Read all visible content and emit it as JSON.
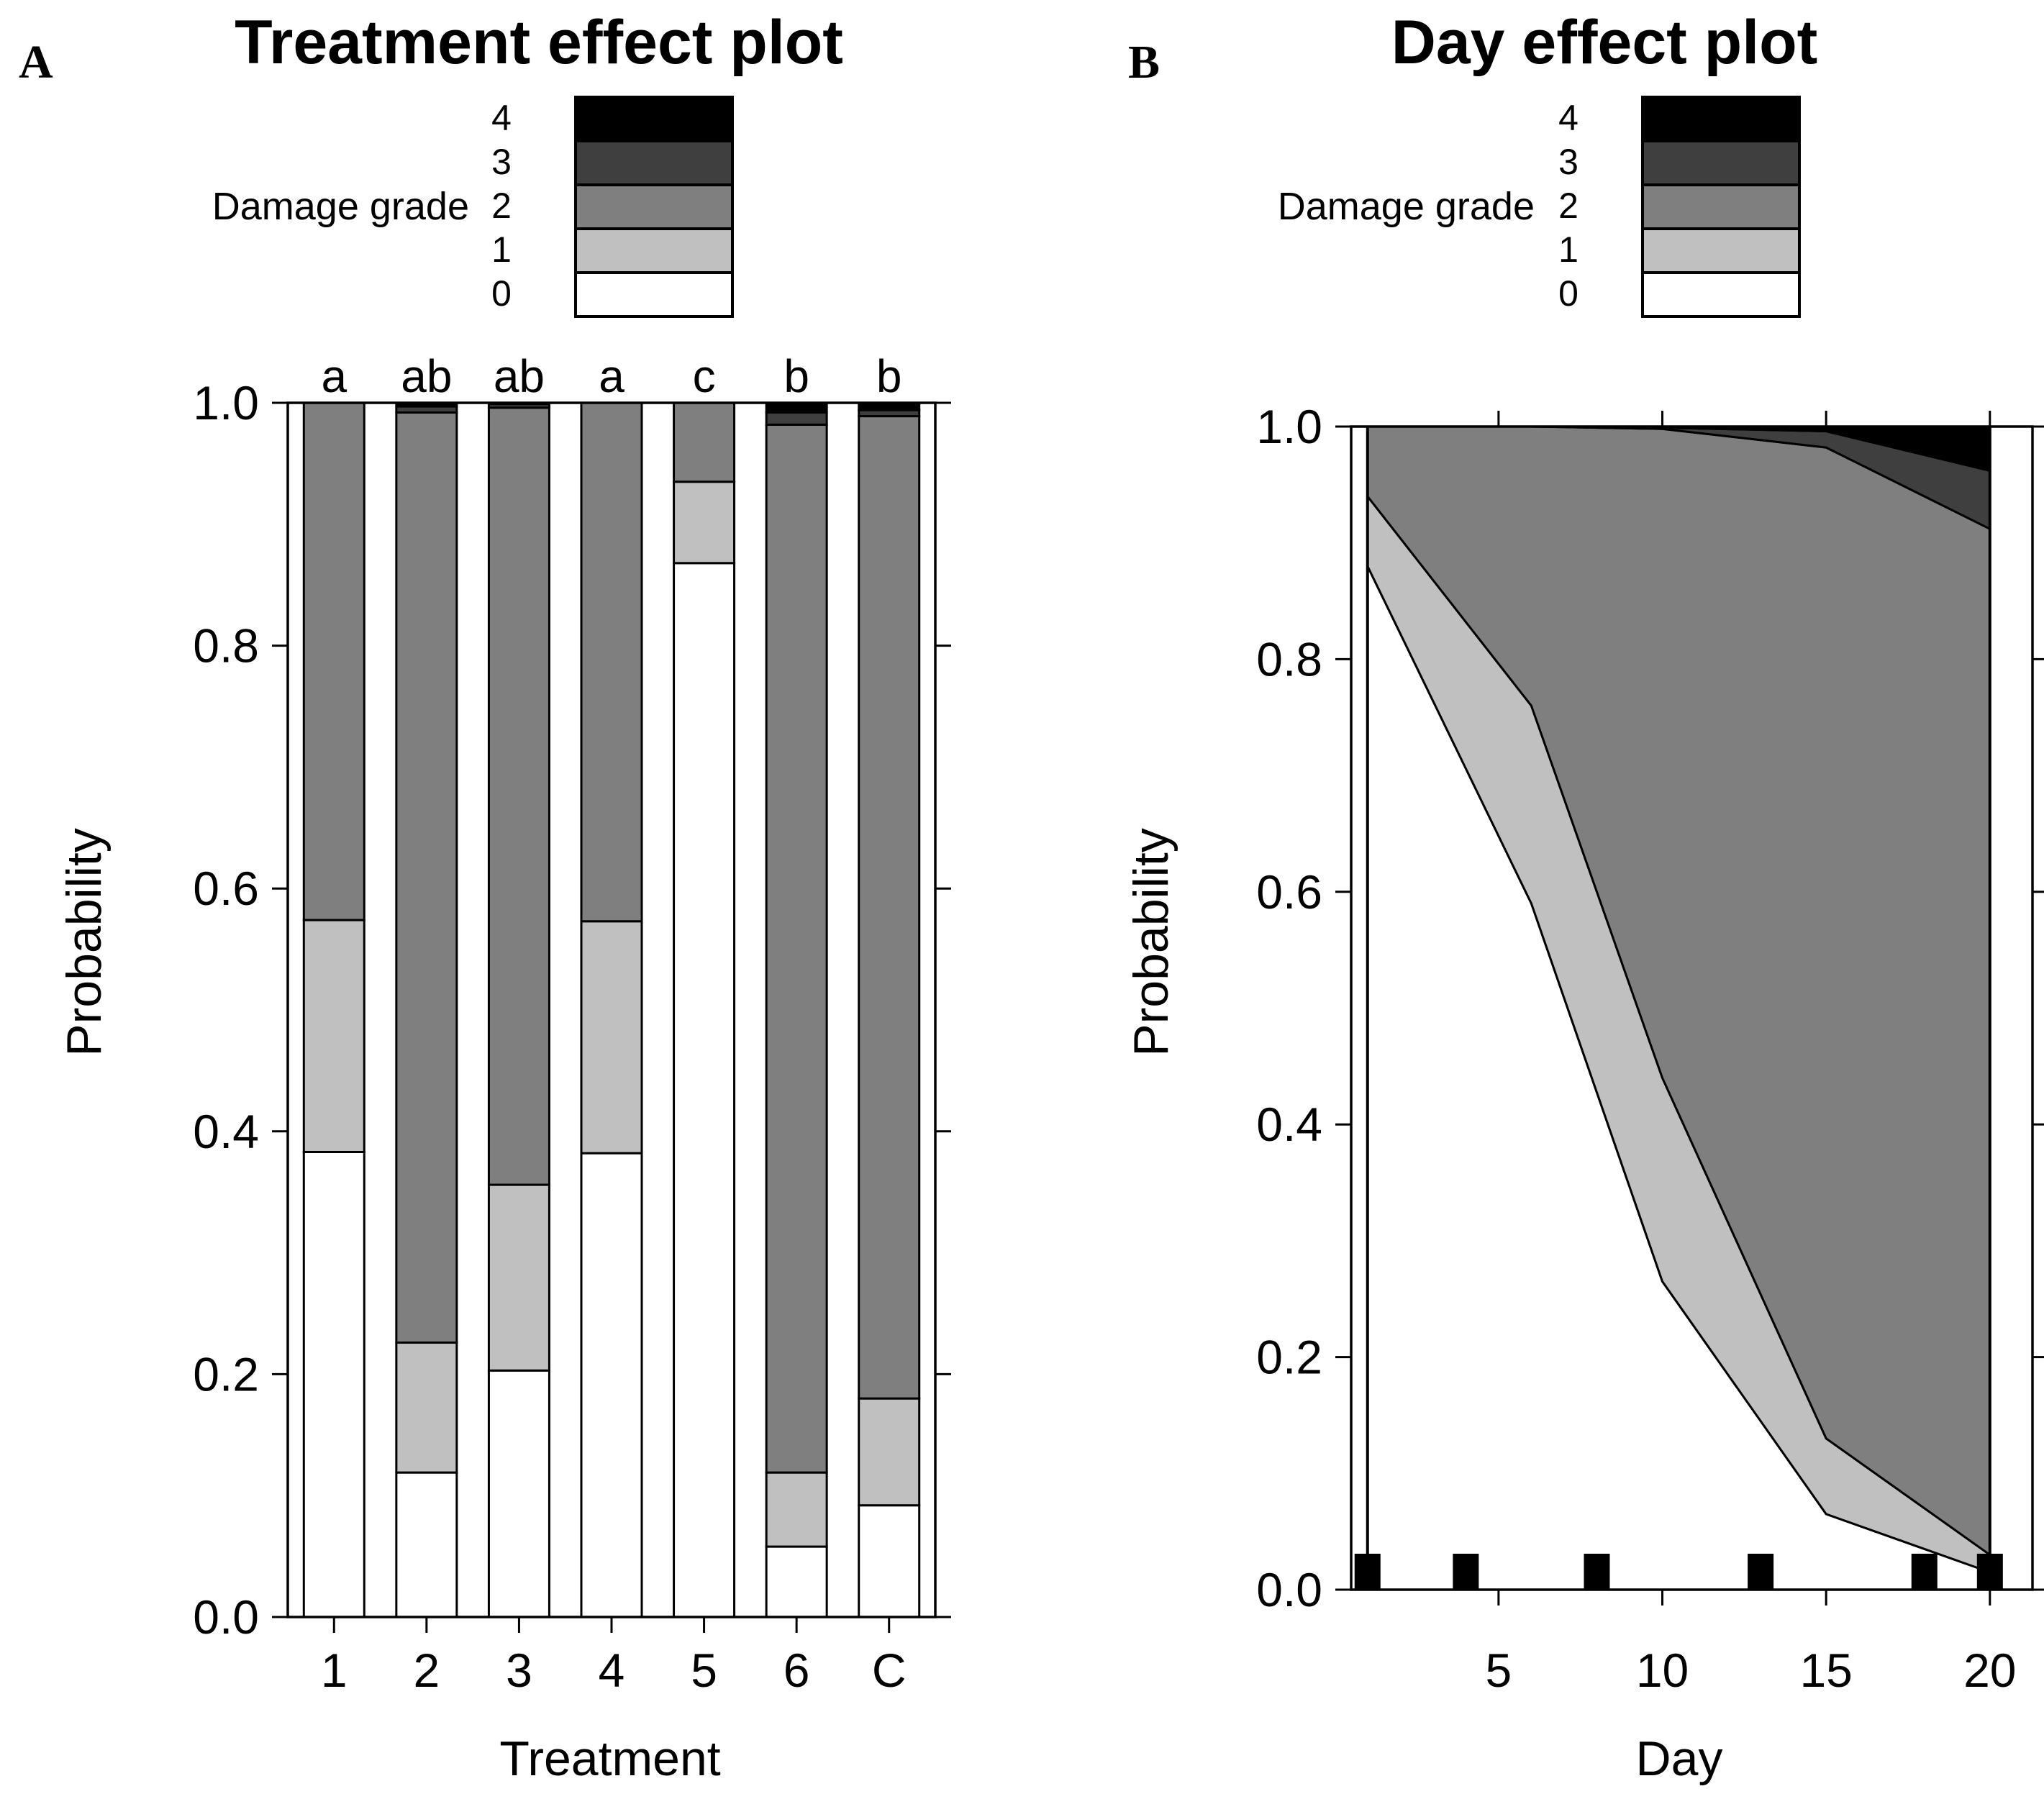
{
  "chart_data": [
    {
      "panel": "A",
      "type": "bar",
      "stacked": true,
      "title": "Treatment effect plot",
      "xlabel": "Treatment",
      "ylabel": "Probability",
      "ylim": [
        0,
        1
      ],
      "yticks": [
        "0.0",
        "0.2",
        "0.4",
        "0.6",
        "0.8",
        "1.0"
      ],
      "legend": {
        "title": "Damage grade",
        "placement": "top",
        "levels": [
          "4",
          "3",
          "2",
          "1",
          "0"
        ],
        "colors": [
          "#000000",
          "#3f3f3f",
          "#7f7f7f",
          "#c0c0c0",
          "#ffffff"
        ]
      },
      "categories": [
        "1",
        "2",
        "3",
        "4",
        "5",
        "6",
        "C"
      ],
      "group_letters": [
        "a",
        "ab",
        "ab",
        "a",
        "c",
        "b",
        "b"
      ],
      "series": [
        {
          "name": "0",
          "color": "#ffffff",
          "values": [
            0.383,
            0.119,
            0.203,
            0.382,
            0.868,
            0.058,
            0.092
          ]
        },
        {
          "name": "1",
          "color": "#c0c0c0",
          "values": [
            0.191,
            0.107,
            0.153,
            0.191,
            0.067,
            0.061,
            0.088
          ]
        },
        {
          "name": "2",
          "color": "#7f7f7f",
          "values": [
            0.426,
            0.766,
            0.64,
            0.427,
            0.065,
            0.863,
            0.809
          ]
        },
        {
          "name": "3",
          "color": "#3f3f3f",
          "values": [
            0.0,
            0.005,
            0.003,
            0.0,
            0.0,
            0.01,
            0.005
          ]
        },
        {
          "name": "4",
          "color": "#000000",
          "values": [
            0.0,
            0.003,
            0.001,
            0.0,
            0.0,
            0.008,
            0.006
          ]
        }
      ]
    },
    {
      "panel": "B",
      "type": "area",
      "stacked": true,
      "title": "Day effect plot",
      "xlabel": "Day",
      "ylabel": "Probability",
      "xlim": [
        0.5,
        21.3
      ],
      "ylim": [
        0,
        1
      ],
      "xticks": [
        5,
        10,
        15,
        20
      ],
      "yticks": [
        "0.0",
        "0.2",
        "0.4",
        "0.6",
        "0.8",
        "1.0"
      ],
      "legend": {
        "title": "Damage grade",
        "placement": "top",
        "levels": [
          "4",
          "3",
          "2",
          "1",
          "0"
        ],
        "colors": [
          "#000000",
          "#3f3f3f",
          "#7f7f7f",
          "#c0c0c0",
          "#ffffff"
        ]
      },
      "x": [
        1,
        6,
        10,
        15,
        20
      ],
      "cumulative_series": [
        {
          "name": "0",
          "color": "#ffffff",
          "upper": [
            0.88,
            0.59,
            0.265,
            0.065,
            0.015
          ]
        },
        {
          "name": "1",
          "color": "#c0c0c0",
          "upper": [
            0.94,
            0.76,
            0.44,
            0.13,
            0.03
          ]
        },
        {
          "name": "2",
          "color": "#7f7f7f",
          "upper": [
            1.0,
            1.0,
            0.998,
            0.982,
            0.912
          ]
        },
        {
          "name": "3",
          "color": "#3f3f3f",
          "upper": [
            1.0,
            1.0,
            0.999,
            0.996,
            0.962
          ]
        },
        {
          "name": "4",
          "color": "#000000",
          "upper": [
            1.0,
            1.0,
            1.0,
            1.0,
            1.0
          ]
        }
      ],
      "rug_days": [
        1,
        4,
        8,
        13,
        18,
        20
      ]
    }
  ]
}
